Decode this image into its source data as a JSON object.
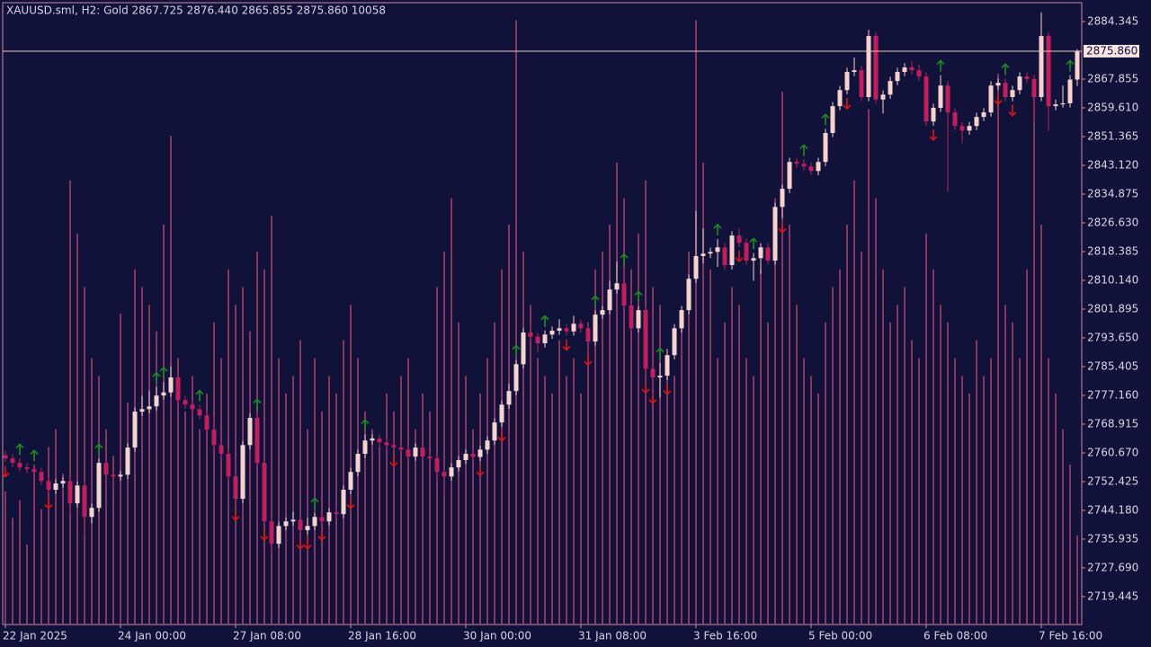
{
  "chart_data": {
    "type": "candlestick",
    "title": "XAUUSD.sml, H2:  Gold  2867.725 2876.440 2865.855 2875.860  10058",
    "categories": [
      "22 Jan 2025",
      null,
      null,
      null,
      null,
      null,
      null,
      null,
      null,
      null,
      null,
      null,
      null,
      null,
      null,
      null,
      "24 Jan 00:00",
      null,
      null,
      null,
      null,
      null,
      null,
      null,
      null,
      null,
      null,
      null,
      null,
      null,
      null,
      null,
      "27 Jan 08:00",
      null,
      null,
      null,
      null,
      null,
      null,
      null,
      null,
      null,
      null,
      null,
      null,
      null,
      null,
      null,
      "28 Jan 16:00",
      null,
      null,
      null,
      null,
      null,
      null,
      null,
      null,
      null,
      null,
      null,
      null,
      null,
      null,
      null,
      "30 Jan 00:00",
      null,
      null,
      null,
      null,
      null,
      null,
      null,
      null,
      null,
      null,
      null,
      null,
      null,
      null,
      null,
      "31 Jan 08:00",
      null,
      null,
      null,
      null,
      null,
      null,
      null,
      null,
      null,
      null,
      null,
      null,
      null,
      null,
      null,
      "3 Feb 16:00",
      null,
      null,
      null,
      null,
      null,
      null,
      null,
      null,
      null,
      null,
      null,
      null,
      null,
      null,
      null,
      "5 Feb 00:00",
      null,
      null,
      null,
      null,
      null,
      null,
      null,
      null,
      null,
      null,
      null,
      null,
      null,
      null,
      null,
      "6 Feb 08:00",
      null,
      null,
      null,
      null,
      null,
      null,
      null,
      null,
      null,
      null,
      null,
      null,
      null,
      null,
      null,
      "7 Feb 16:00",
      null,
      null,
      null,
      null,
      null
    ],
    "open": [
      2760.0,
      2759.1,
      2757.8,
      2756.5,
      2756.0,
      2755.2,
      2752.6,
      2750.1,
      2751.9,
      2752.6,
      2746.2,
      2751.3,
      2742.3,
      2744.9,
      2757.8,
      2754.4,
      2753.9,
      2754.4,
      2762.2,
      2772.5,
      2773.2,
      2774.0,
      2777.1,
      2778.0,
      2782.3,
      2775.8,
      2774.5,
      2773.2,
      2771.4,
      2767.3,
      2762.9,
      2760.4,
      2753.9,
      2747.5,
      2762.9,
      2770.7,
      2757.8,
      2741.0,
      2734.6,
      2739.7,
      2741.0,
      2741.5,
      2738.5,
      2739.7,
      2742.3,
      2741.0,
      2743.6,
      2743.1,
      2750.1,
      2755.2,
      2760.4,
      2764.2,
      2764.8,
      2763.7,
      2762.9,
      2762.2,
      2761.6,
      2759.6,
      2762.2,
      2759.6,
      2759.1,
      2755.2,
      2753.9,
      2756.5,
      2758.6,
      2760.4,
      2759.5,
      2761.6,
      2764.2,
      2769.4,
      2774.5,
      2778.4,
      2786.1,
      2795.2,
      2794.0,
      2792.1,
      2794.6,
      2795.7,
      2796.4,
      2795.5,
      2797.7,
      2796.4,
      2792.6,
      2800.3,
      2801.6,
      2807.5,
      2809.3,
      2802.9,
      2796.4,
      2801.6,
      2784.8,
      2782.3,
      2782.8,
      2788.7,
      2796.4,
      2801.6,
      2810.6,
      2817.1,
      2817.8,
      2818.3,
      2819.6,
      2814.5,
      2823.0,
      2820.9,
      2815.8,
      2816.5,
      2819.6,
      2815.8,
      2831.2,
      2836.4,
      2844.1,
      2843.6,
      2842.8,
      2841.5,
      2844.1,
      2852.4,
      2860.1,
      2864.7,
      2869.9,
      2870.4,
      2862.7,
      2880.2,
      2862.0,
      2863.4,
      2867.3,
      2869.9,
      2871.2,
      2870.4,
      2868.6,
      2855.7,
      2859.6,
      2866.0,
      2858.3,
      2854.4,
      2853.1,
      2854.4,
      2857.0,
      2858.3,
      2866.0,
      2866.8,
      2862.7,
      2864.7,
      2868.6,
      2867.9,
      2862.7,
      2880.2,
      2860.1,
      2860.6,
      2860.9,
      2867.725
    ],
    "high": [
      2761.2,
      2760.3,
      2759.0,
      2757.7,
      2757.2,
      2756.4,
      2753.8,
      2753.1,
      2753.8,
      2753.8,
      2752.5,
      2752.5,
      2746.1,
      2759.0,
      2759.0,
      2755.6,
      2755.6,
      2763.4,
      2773.7,
      2777.0,
      2778.5,
      2779.5,
      2781.0,
      2785.5,
      2783.5,
      2777.0,
      2775.7,
      2774.4,
      2772.6,
      2771.0,
      2764.1,
      2761.6,
      2755.1,
      2764.1,
      2772.0,
      2771.9,
      2759.0,
      2742.2,
      2740.9,
      2742.2,
      2743.7,
      2742.7,
      2742.0,
      2743.5,
      2743.5,
      2744.8,
      2745.0,
      2751.3,
      2756.4,
      2761.6,
      2766.0,
      2766.0,
      2766.0,
      2764.9,
      2764.1,
      2763.4,
      2762.8,
      2763.4,
      2763.4,
      2760.8,
      2760.3,
      2756.4,
      2757.7,
      2759.8,
      2761.6,
      2761.6,
      2762.8,
      2765.4,
      2770.6,
      2775.7,
      2780.5,
      2787.3,
      2796.4,
      2797.5,
      2795.2,
      2795.8,
      2796.9,
      2799.0,
      2797.6,
      2800.0,
      2798.9,
      2797.6,
      2801.5,
      2802.8,
      2810.0,
      2815.5,
      2813.5,
      2804.1,
      2802.8,
      2802.8,
      2786.0,
      2786.5,
      2790.5,
      2797.6,
      2802.8,
      2811.8,
      2830.0,
      2825.0,
      2819.5,
      2822.0,
      2820.8,
      2824.2,
      2825.0,
      2822.1,
      2818.0,
      2820.8,
      2820.8,
      2832.4,
      2837.6,
      2845.3,
      2845.3,
      2844.8,
      2844.0,
      2845.3,
      2853.6,
      2861.3,
      2865.9,
      2871.1,
      2874.0,
      2871.6,
      2882.0,
      2881.4,
      2864.6,
      2868.5,
      2871.1,
      2872.4,
      2873.0,
      2872.0,
      2869.8,
      2860.8,
      2869.0,
      2867.2,
      2859.5,
      2855.6,
      2855.6,
      2858.2,
      2859.5,
      2867.2,
      2868.0,
      2868.0,
      2866.0,
      2869.8,
      2869.8,
      2869.1,
      2887.0,
      2881.4,
      2862.0,
      2866.0,
      2869.0,
      2876.44
    ],
    "low": [
      2758.0,
      2756.6,
      2755.3,
      2754.8,
      2754.0,
      2751.4,
      2748.9,
      2748.9,
      2750.7,
      2743.0,
      2745.0,
      2737.0,
      2740.5,
      2743.7,
      2753.2,
      2751.0,
      2752.7,
      2753.2,
      2761.0,
      2771.3,
      2772.0,
      2772.8,
      2775.9,
      2776.8,
      2774.6,
      2773.3,
      2771.0,
      2770.2,
      2766.1,
      2761.7,
      2759.2,
      2752.7,
      2745.5,
      2746.3,
      2761.7,
      2756.6,
      2739.8,
      2731.5,
      2733.4,
      2738.5,
      2739.8,
      2737.3,
      2737.3,
      2738.5,
      2739.8,
      2739.8,
      2741.9,
      2741.9,
      2748.9,
      2754.0,
      2759.2,
      2763.0,
      2762.5,
      2761.7,
      2761.0,
      2760.4,
      2758.4,
      2758.4,
      2758.4,
      2757.9,
      2753.0,
      2748.0,
      2752.7,
      2755.3,
      2757.4,
      2758.3,
      2758.3,
      2760.4,
      2763.0,
      2768.2,
      2773.3,
      2777.2,
      2784.9,
      2792.8,
      2789.5,
      2790.9,
      2793.4,
      2794.5,
      2794.3,
      2794.3,
      2795.2,
      2790.0,
      2791.4,
      2799.1,
      2800.4,
      2806.3,
      2801.7,
      2795.2,
      2795.2,
      2782.0,
      2779.0,
      2776.5,
      2781.6,
      2787.5,
      2795.2,
      2800.4,
      2809.4,
      2815.0,
      2816.5,
      2814.0,
      2813.3,
      2813.3,
      2819.7,
      2814.6,
      2810.0,
      2812.0,
      2814.6,
      2814.6,
      2828.0,
      2835.2,
      2842.4,
      2841.6,
      2840.3,
      2840.3,
      2842.9,
      2851.2,
      2858.9,
      2863.5,
      2868.7,
      2861.5,
      2861.5,
      2860.8,
      2858.0,
      2862.2,
      2866.1,
      2868.7,
      2869.2,
      2867.4,
      2854.5,
      2854.5,
      2858.4,
      2835.5,
      2853.2,
      2849.5,
      2851.9,
      2853.2,
      2855.8,
      2857.1,
      2864.8,
      2861.5,
      2861.5,
      2863.5,
      2866.7,
      2856.0,
      2861.5,
      2853.0,
      2858.9,
      2859.7,
      2859.7,
      2865.855
    ],
    "close": [
      2759.1,
      2757.8,
      2756.5,
      2756.0,
      2755.2,
      2752.6,
      2750.1,
      2751.9,
      2752.6,
      2746.2,
      2751.3,
      2742.3,
      2744.9,
      2757.8,
      2754.4,
      2753.9,
      2754.4,
      2762.2,
      2772.5,
      2773.2,
      2774.0,
      2777.1,
      2778.0,
      2782.3,
      2775.8,
      2774.5,
      2773.2,
      2771.4,
      2767.3,
      2762.9,
      2760.4,
      2753.9,
      2747.5,
      2762.9,
      2770.7,
      2757.8,
      2741.0,
      2734.6,
      2739.7,
      2741.0,
      2741.5,
      2738.5,
      2739.7,
      2742.3,
      2741.0,
      2743.6,
      2743.1,
      2750.1,
      2755.2,
      2760.4,
      2764.2,
      2764.8,
      2763.7,
      2762.9,
      2762.2,
      2761.6,
      2759.6,
      2762.2,
      2759.6,
      2759.1,
      2755.2,
      2753.9,
      2756.5,
      2758.6,
      2760.4,
      2759.5,
      2761.6,
      2764.2,
      2769.4,
      2774.5,
      2778.4,
      2786.1,
      2795.2,
      2794.0,
      2792.1,
      2794.6,
      2795.7,
      2796.4,
      2795.5,
      2797.7,
      2796.4,
      2792.6,
      2800.3,
      2801.6,
      2807.5,
      2809.3,
      2802.9,
      2796.4,
      2801.6,
      2784.8,
      2782.3,
      2782.8,
      2788.7,
      2796.4,
      2801.6,
      2810.6,
      2817.1,
      2817.8,
      2818.3,
      2819.6,
      2814.5,
      2823.0,
      2820.9,
      2815.8,
      2816.5,
      2819.6,
      2815.8,
      2831.2,
      2836.4,
      2844.1,
      2843.6,
      2842.8,
      2841.5,
      2844.1,
      2852.4,
      2860.1,
      2864.7,
      2869.9,
      2870.4,
      2862.7,
      2880.2,
      2862.0,
      2863.4,
      2867.3,
      2869.9,
      2871.2,
      2870.4,
      2868.6,
      2855.7,
      2859.6,
      2866.0,
      2858.3,
      2854.4,
      2853.1,
      2854.4,
      2857.0,
      2858.3,
      2866.0,
      2866.8,
      2862.7,
      2864.7,
      2868.6,
      2867.9,
      2862.7,
      2880.2,
      2860.1,
      2860.6,
      2860.9,
      2867.725,
      2875.86
    ],
    "volume": [
      15000,
      12000,
      14000,
      9000,
      18000,
      13000,
      20000,
      22000,
      17000,
      50000,
      44000,
      38000,
      30000,
      28000,
      22000,
      19000,
      35000,
      25000,
      40000,
      38000,
      36000,
      33000,
      45000,
      55000,
      30000,
      24000,
      28000,
      22000,
      26000,
      34000,
      30000,
      40000,
      36000,
      38000,
      33000,
      42000,
      40000,
      46000,
      30000,
      26000,
      28000,
      32000,
      22000,
      30000,
      24000,
      28000,
      26000,
      32000,
      36000,
      30000,
      24000,
      22000,
      20000,
      26000,
      24000,
      28000,
      30000,
      22000,
      26000,
      24000,
      38000,
      42000,
      48000,
      34000,
      28000,
      22000,
      26000,
      30000,
      34000,
      40000,
      45000,
      68000,
      42000,
      36000,
      30000,
      28000,
      26000,
      32000,
      28000,
      30000,
      26000,
      34000,
      40000,
      42000,
      45000,
      52000,
      48000,
      40000,
      44000,
      50000,
      38000,
      36000,
      30000,
      28000,
      34000,
      42000,
      68000,
      52000,
      40000,
      30000,
      34000,
      38000,
      36000,
      30000,
      28000,
      40000,
      34000,
      48000,
      60000,
      45000,
      36000,
      30000,
      28000,
      26000,
      34000,
      38000,
      40000,
      45000,
      50000,
      42000,
      58000,
      48000,
      40000,
      34000,
      36000,
      38000,
      32000,
      30000,
      44000,
      40000,
      36000,
      34000,
      30000,
      28000,
      26000,
      32000,
      28000,
      30000,
      62000,
      36000,
      34000,
      30000,
      40000,
      60000,
      45000,
      30000,
      26000,
      22000,
      18000,
      10058
    ],
    "volume_lim": [
      0,
      70000
    ],
    "ylim": [
      2711.44,
      2889.76
    ],
    "yticks": [
      2884.345,
      2867.855,
      {
        "value": 2859.61,
        "label": "2859.610"
      },
      2851.365,
      {
        "value": 2843.12,
        "label": "2843.120"
      },
      2834.875,
      {
        "value": 2826.63,
        "label": "2826.630"
      },
      2818.385,
      {
        "value": 2810.14,
        "label": "2810.140"
      },
      2801.895,
      {
        "value": 2793.65,
        "label": "2793.650"
      },
      2785.405,
      {
        "value": 2777.16,
        "label": "2777.160"
      },
      2768.915,
      {
        "value": 2760.67,
        "label": "2760.670"
      },
      2752.425,
      {
        "value": 2744.18,
        "label": "2744.180"
      },
      2735.935,
      {
        "value": 2727.69,
        "label": "2727.690"
      },
      2719.445
    ],
    "last_price": {
      "value": 2875.86,
      "label": "2875.860"
    },
    "up_arrows": [
      2,
      4,
      13,
      21,
      22,
      27,
      35,
      43,
      50,
      71,
      75,
      82,
      86,
      88,
      91,
      99,
      104,
      111,
      114,
      130,
      139,
      148
    ],
    "down_arrows": [
      0,
      6,
      32,
      36,
      41,
      42,
      44,
      48,
      54,
      66,
      69,
      78,
      81,
      89,
      90,
      92,
      102,
      108,
      117,
      129,
      138,
      140
    ],
    "colors": {
      "bull": "#f8d2cc",
      "bear": "#c21d5c",
      "volume": "#b83c70",
      "up_arrow": "#1e8c1e",
      "down_arrow": "#e01414",
      "background": "#10123a",
      "axis": "#c98aa4",
      "text": "#d8d2e2",
      "price_line": "#e8c8c4",
      "price_box": "#f8e4e0",
      "price_text": "#10123a"
    }
  }
}
